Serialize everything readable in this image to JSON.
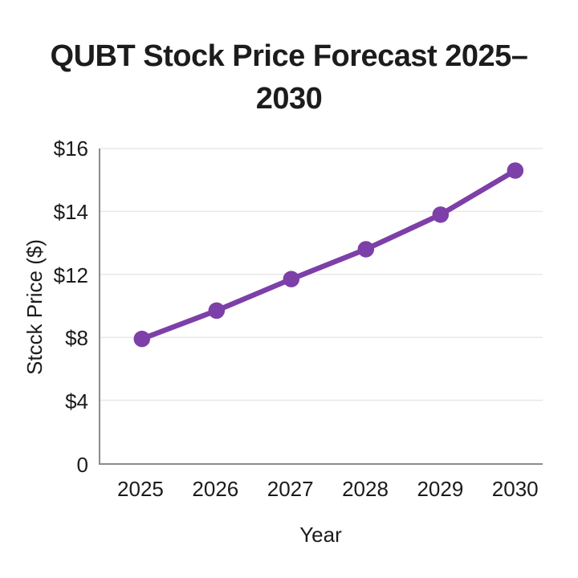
{
  "page": {
    "background": "#ffffff",
    "text_color": "#1b1b1b"
  },
  "chart_data": {
    "type": "line",
    "title": "QUBT Stock Price Forecast 2025–2030",
    "xlabel": "Year",
    "ylabel": "Stcck Price ($)",
    "categories": [
      "2025",
      "2026",
      "2027",
      "2028",
      "2029",
      "2030"
    ],
    "values": [
      7.9,
      9.7,
      11.7,
      12.8,
      13.9,
      15.3
    ],
    "y_axis": {
      "ticks": [
        0,
        4,
        8,
        12,
        14,
        16
      ],
      "tick_labels": [
        "0",
        "$4",
        "$8",
        "$12",
        "$14",
        "$16"
      ],
      "note": "tick labels are non-linear but rendered at uniform spacing"
    },
    "grid": true,
    "legend": false,
    "marker": "circle",
    "line_color": "#7d3fa8",
    "grid_color": "#e8e8e8",
    "axis_color": "#8c8c8c",
    "title_color": "#1c1c1c"
  }
}
